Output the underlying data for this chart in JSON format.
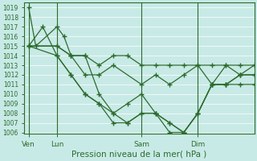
{
  "title": "",
  "xlabel": "Pression niveau de la mer( hPa )",
  "ylabel": "",
  "bg_color": "#c8eae6",
  "grid_color": "#ffffff",
  "line_color": "#2d6b2d",
  "ylim": [
    1006,
    1019.5
  ],
  "ylim_bottom": 1006,
  "ylim_top": 1019,
  "yticks": [
    1006,
    1007,
    1008,
    1009,
    1010,
    1011,
    1012,
    1013,
    1014,
    1015,
    1016,
    1017,
    1018,
    1019
  ],
  "xtick_labels": [
    "Ven",
    "Lun",
    "Sam",
    "Dim"
  ],
  "xtick_positions": [
    0,
    2,
    8,
    12
  ],
  "vlines": [
    0,
    2,
    8,
    12
  ],
  "xlim": [
    -0.3,
    16
  ],
  "lines": [
    {
      "x": [
        0,
        0.5,
        2,
        2.5,
        3,
        4,
        5,
        6,
        8,
        9,
        10,
        11,
        12,
        13,
        14,
        15,
        16
      ],
      "y": [
        1019,
        1015,
        1017,
        1016,
        1014,
        1012,
        1012,
        1013,
        1011,
        1012,
        1011,
        1012,
        1013,
        1011,
        1013,
        1012,
        1013
      ]
    },
    {
      "x": [
        0,
        2,
        3,
        4,
        5,
        6,
        7,
        8,
        9,
        10,
        11,
        12,
        13,
        14,
        15,
        16
      ],
      "y": [
        1015,
        1015,
        1014,
        1014,
        1013,
        1014,
        1014,
        1013,
        1013,
        1013,
        1013,
        1013,
        1013,
        1013,
        1013,
        1013
      ]
    },
    {
      "x": [
        0,
        1,
        2,
        3,
        4,
        5,
        6,
        7,
        8,
        9,
        10,
        11,
        12,
        13,
        14,
        15,
        16
      ],
      "y": [
        1015,
        1017,
        1014,
        1012,
        1010,
        1009,
        1008,
        1009,
        1010,
        1008,
        1007,
        1006,
        1008,
        1011,
        1011,
        1012,
        1012
      ]
    },
    {
      "x": [
        0,
        2,
        3,
        4,
        5,
        6,
        7,
        8,
        9,
        10,
        11,
        12,
        13,
        14,
        15,
        16
      ],
      "y": [
        1015,
        1015,
        1014,
        1014,
        1010,
        1008,
        1007,
        1008,
        1008,
        1006,
        1006,
        1008,
        1011,
        1011,
        1011,
        1011
      ]
    },
    {
      "x": [
        0,
        2,
        3,
        4,
        5,
        6,
        7,
        8,
        9,
        10,
        11,
        12,
        13,
        14,
        15,
        16
      ],
      "y": [
        1015,
        1014,
        1012,
        1010,
        1009,
        1007,
        1007,
        1008,
        1008,
        1007,
        1006,
        1008,
        1011,
        1011,
        1012,
        1012
      ]
    }
  ],
  "marker": "+",
  "markersize": 4.5,
  "linewidth": 0.9,
  "ytick_fontsize": 5.5,
  "xtick_fontsize": 6.5,
  "xlabel_fontsize": 7.5
}
